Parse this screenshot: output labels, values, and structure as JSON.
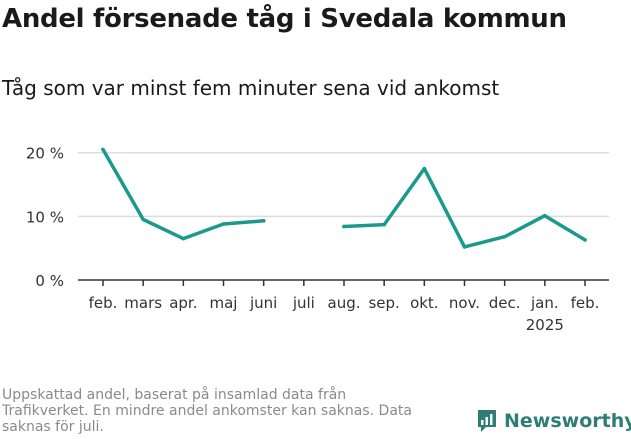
{
  "title": "Andel försenade tåg i Svedala kommun",
  "subtitle": "Tåg som var minst fem minuter sena vid ankomst",
  "footnote": "Uppskattad andel, baserat på insamlad data från Trafikverket. En mindre andel ankomster kan saknas. Data saknas för juli.",
  "brand": {
    "name": "Newsworthy",
    "icon": "newsworthy-logo-icon",
    "color": "#2f7d74"
  },
  "colors": {
    "line": "#1a9a8c",
    "grid": "#dcdcdc",
    "axis": "#333333"
  },
  "chart_data": {
    "type": "line",
    "title": "Andel försenade tåg i Svedala kommun",
    "subtitle": "Tåg som var minst fem minuter sena vid ankomst",
    "categories": [
      "feb.",
      "mars",
      "apr.",
      "maj",
      "juni",
      "juli",
      "aug.",
      "sep.",
      "okt.",
      "nov.",
      "dec.",
      "jan.",
      "feb."
    ],
    "year_labels": [
      "",
      "",
      "",
      "",
      "",
      "",
      "",
      "",
      "",
      "",
      "",
      "2025",
      ""
    ],
    "values": [
      20.5,
      9.5,
      6.5,
      8.8,
      9.3,
      null,
      8.4,
      8.7,
      17.5,
      5.2,
      6.8,
      10.1,
      6.3
    ],
    "ylim": [
      0,
      22
    ],
    "y_ticks": [
      0,
      10,
      20
    ],
    "y_tick_labels": [
      "0 %",
      "10 %",
      "20 %"
    ],
    "grid": true,
    "xlabel": "",
    "ylabel": ""
  }
}
